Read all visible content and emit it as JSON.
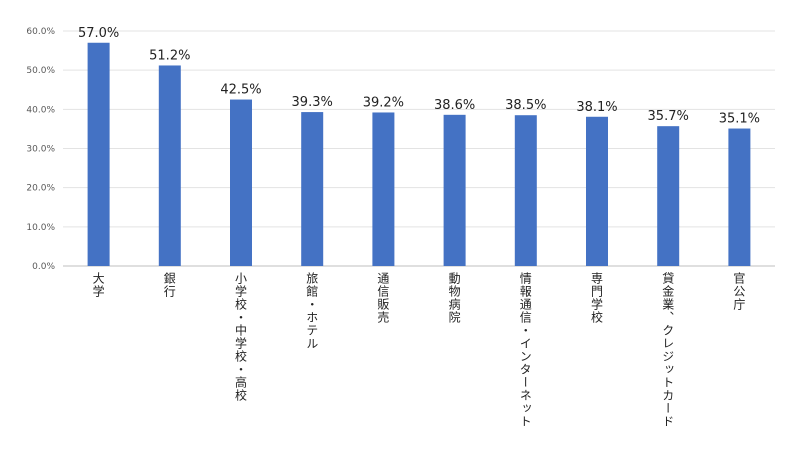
{
  "chart_data": {
    "type": "bar",
    "title": "",
    "xlabel": "",
    "ylabel": "",
    "ylim": [
      0,
      60
    ],
    "yticks": [
      "0.0%",
      "10.0%",
      "20.0%",
      "30.0%",
      "40.0%",
      "50.0%",
      "60.0%"
    ],
    "grid": true,
    "bar_color": "#4472C4",
    "categories": [
      "大学",
      "銀行",
      "小学校・中学校・高校",
      "旅館・ホテル",
      "通信販売",
      "動物病院",
      "情報通信・インターネット",
      "専門学校",
      "貸金業、クレジットカード",
      "官公庁"
    ],
    "values": [
      57.0,
      51.2,
      42.5,
      39.3,
      39.2,
      38.6,
      38.5,
      38.1,
      35.7,
      35.1
    ],
    "data_labels": [
      "57.0%",
      "51.2%",
      "42.5%",
      "39.3%",
      "39.2%",
      "38.6%",
      "38.5%",
      "38.1%",
      "35.7%",
      "35.1%"
    ]
  }
}
